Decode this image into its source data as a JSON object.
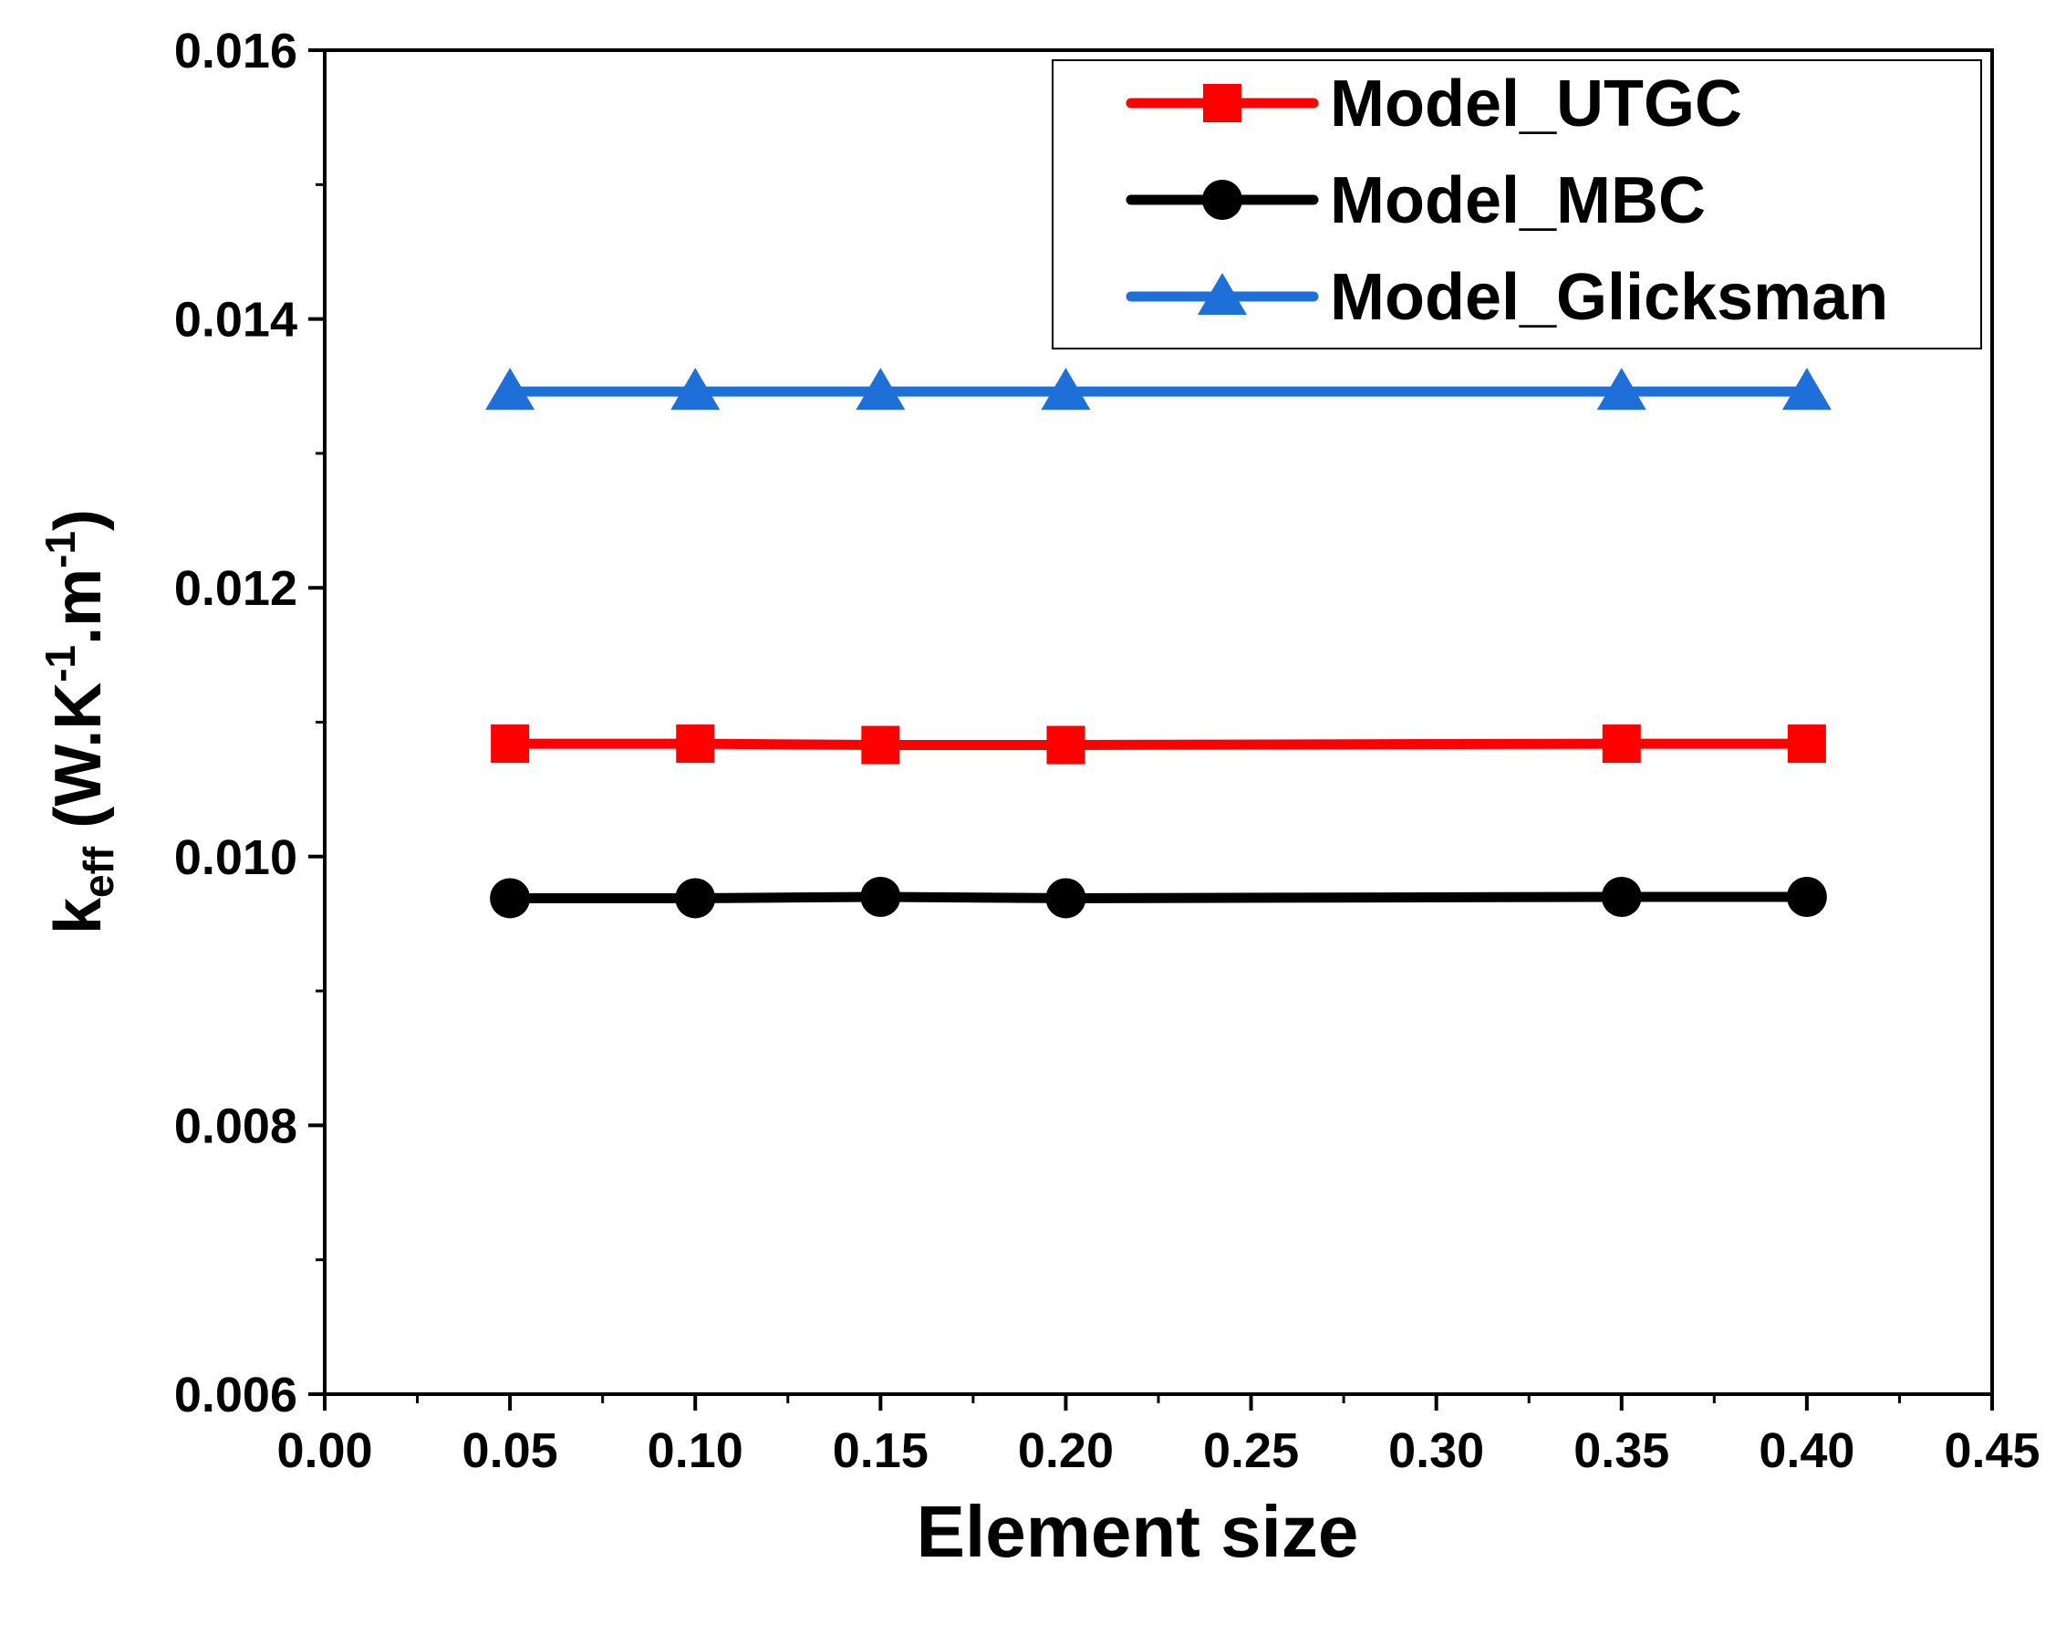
{
  "chart_data": {
    "type": "line",
    "title": "",
    "xlabel": "Element size",
    "ylabel": {
      "base": "k",
      "base_sub": "eff",
      "part1": " (W.K",
      "sup1": "-1",
      "part2": ".m",
      "sup2": "-1",
      "part3": ")"
    },
    "xlim": [
      0.0,
      0.45
    ],
    "ylim": [
      0.006,
      0.016
    ],
    "xticks": [
      "0.00",
      "0.05",
      "0.10",
      "0.15",
      "0.20",
      "0.25",
      "0.30",
      "0.35",
      "0.40",
      "0.45"
    ],
    "xtick_values": [
      0.0,
      0.05,
      0.1,
      0.15,
      0.2,
      0.25,
      0.3,
      0.35,
      0.4,
      0.45
    ],
    "yticks": [
      "0.006",
      "0.008",
      "0.010",
      "0.012",
      "0.014",
      "0.016"
    ],
    "ytick_values": [
      0.006,
      0.008,
      0.01,
      0.012,
      0.014,
      0.016
    ],
    "legend_position": "top-right",
    "series": [
      {
        "name": "Model_UTGC",
        "color": "#ff0000",
        "marker": "square",
        "x": [
          0.05,
          0.1,
          0.15,
          0.2,
          0.35,
          0.4
        ],
        "y": [
          0.01084,
          0.01084,
          0.01083,
          0.01083,
          0.01084,
          0.01084
        ]
      },
      {
        "name": "Model_MBC",
        "color": "#000000",
        "marker": "circle",
        "x": [
          0.05,
          0.1,
          0.15,
          0.2,
          0.35,
          0.4
        ],
        "y": [
          0.00969,
          0.00969,
          0.0097,
          0.00969,
          0.0097,
          0.0097
        ]
      },
      {
        "name": "Model_Glicksman",
        "color": "#1f6fd8",
        "marker": "triangle",
        "x": [
          0.05,
          0.1,
          0.15,
          0.2,
          0.35,
          0.4
        ],
        "y": [
          0.01346,
          0.01346,
          0.01346,
          0.01346,
          0.01346,
          0.01346
        ]
      }
    ]
  }
}
